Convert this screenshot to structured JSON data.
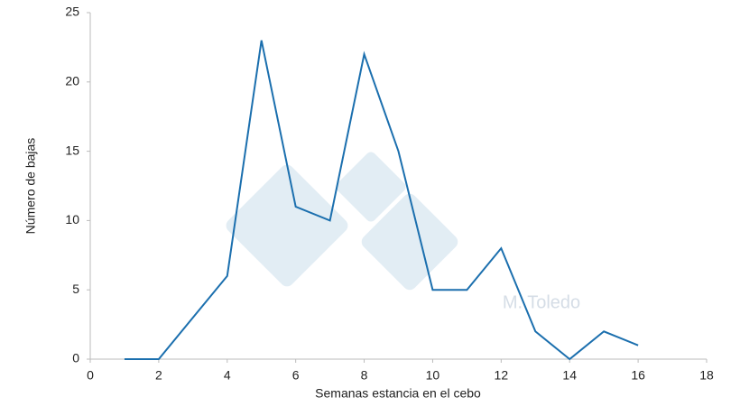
{
  "chart_data": {
    "type": "line",
    "x_label": "Semanas estancia en el cebo",
    "y_label": "Número de bajas",
    "watermark": "M. Toledo",
    "x": [
      1,
      2,
      3,
      4,
      5,
      6,
      7,
      8,
      9,
      10,
      11,
      12,
      13,
      14,
      15,
      16
    ],
    "series": [
      {
        "color": "#1b6fae",
        "values": [
          0,
          0,
          3,
          6,
          23,
          11,
          10,
          22,
          15,
          5,
          5,
          8,
          2,
          0,
          2,
          1
        ]
      }
    ],
    "xlim": [
      0,
      18
    ],
    "xticks": [
      0,
      2,
      4,
      6,
      8,
      10,
      12,
      14,
      16,
      18
    ],
    "ylim": [
      0,
      25
    ],
    "yticks": [
      0,
      5,
      10,
      15,
      20,
      25
    ],
    "grid": false
  }
}
